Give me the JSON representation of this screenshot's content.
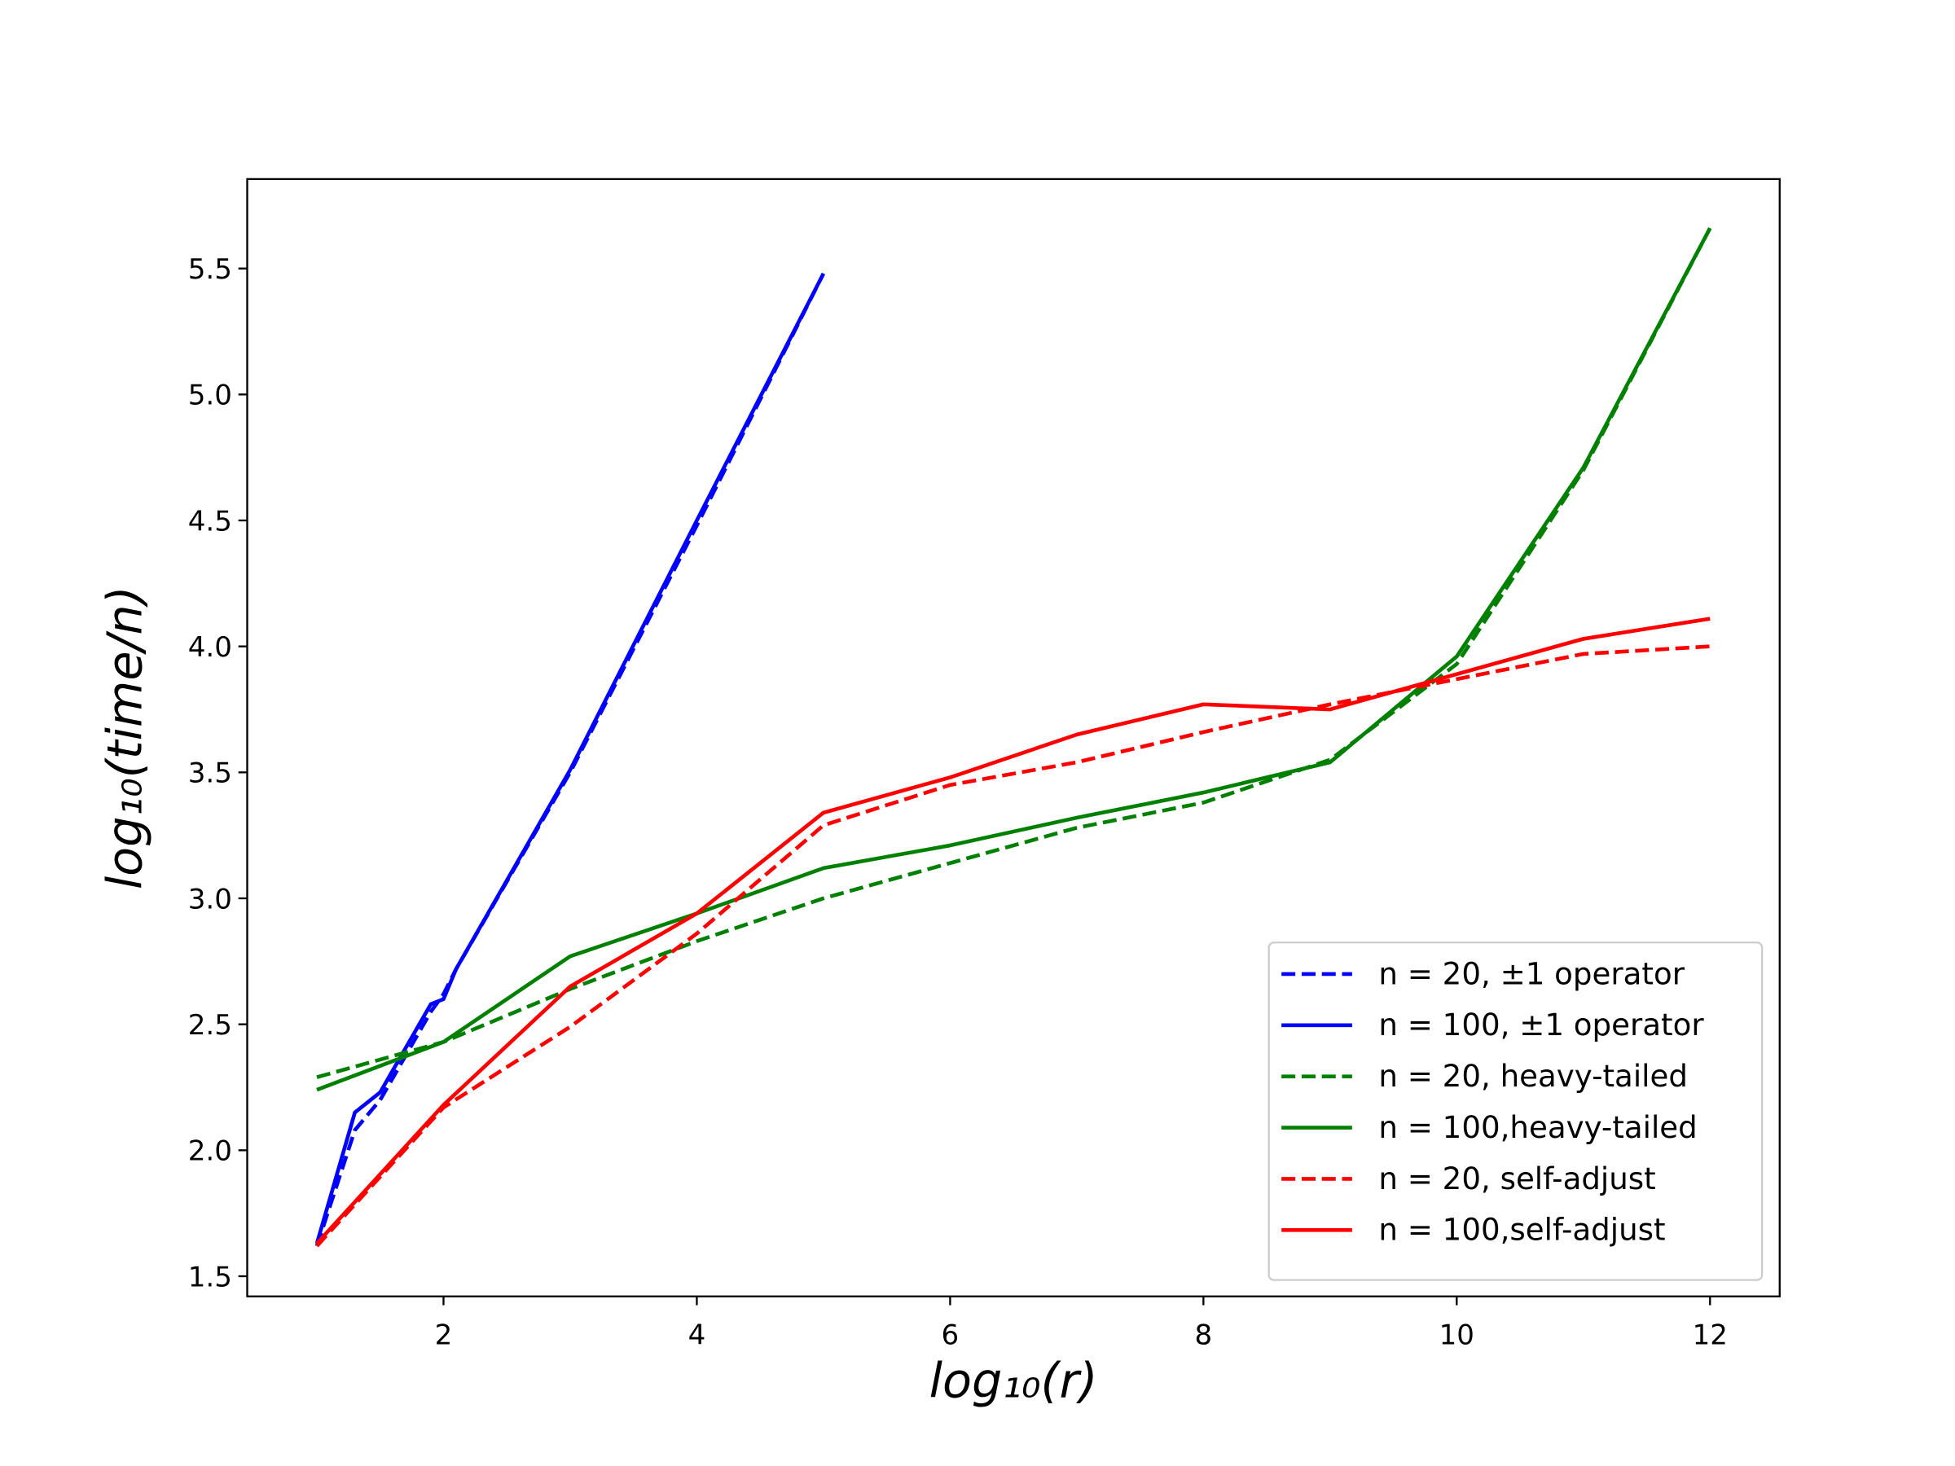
{
  "chart_data": {
    "type": "line",
    "x_label": "log₁₀(r)",
    "y_label": "log₁₀(time/n)",
    "xlim": [
      0.45,
      12.55
    ],
    "ylim": [
      1.42,
      5.855
    ],
    "xticks": [
      2,
      4,
      6,
      8,
      10,
      12
    ],
    "yticks": [
      1.5,
      {
        "value": 2,
        "label": "2.0"
      },
      2.5,
      {
        "value": 3,
        "label": "3.0"
      },
      3.5,
      {
        "value": 4,
        "label": "4.0"
      },
      4.5,
      {
        "value": 5,
        "label": "5.0"
      },
      5.5
    ],
    "grid": false,
    "legend": "lower right",
    "series": [
      {
        "name": "n = 20, ±1 operator",
        "color": "#0000ff",
        "linestyle": "dashed",
        "x": [
          1,
          1.3,
          1.5,
          1.9,
          2,
          2.1,
          3,
          4,
          5
        ],
        "values": [
          1.62,
          2.08,
          2.2,
          2.55,
          2.62,
          2.72,
          3.5,
          4.48,
          5.48
        ]
      },
      {
        "name": "n = 100, ±1 operator",
        "color": "#0000ff",
        "linestyle": "solid",
        "x": [
          1,
          1.3,
          1.5,
          1.9,
          2,
          2.1,
          3,
          4,
          5
        ],
        "values": [
          1.63,
          2.15,
          2.23,
          2.58,
          2.6,
          2.72,
          3.51,
          4.5,
          5.48
        ]
      },
      {
        "name": "n = 20, heavy-tailed",
        "color": "#008000",
        "linestyle": "dashed",
        "x": [
          1,
          2,
          3,
          4,
          5,
          6,
          7,
          8,
          9,
          10,
          11,
          12
        ],
        "values": [
          2.29,
          2.43,
          2.64,
          2.83,
          3.0,
          3.14,
          3.28,
          3.38,
          3.55,
          3.93,
          4.7,
          5.66
        ]
      },
      {
        "name": "n = 100,heavy-tailed",
        "color": "#008000",
        "linestyle": "solid",
        "x": [
          1,
          2,
          3,
          4,
          5,
          6,
          7,
          8,
          9,
          10,
          11,
          12
        ],
        "values": [
          2.24,
          2.43,
          2.77,
          2.94,
          3.12,
          3.21,
          3.32,
          3.42,
          3.54,
          3.96,
          4.71,
          5.66
        ]
      },
      {
        "name": "n = 20, self-adjust",
        "color": "#ff0000",
        "linestyle": "dashed",
        "x": [
          1,
          2,
          3,
          4,
          5,
          6,
          7,
          8,
          9,
          10,
          11,
          12
        ],
        "values": [
          1.62,
          2.17,
          2.49,
          2.86,
          3.29,
          3.45,
          3.54,
          3.66,
          3.77,
          3.87,
          3.97,
          4.0
        ]
      },
      {
        "name": "n = 100,self-adjust",
        "color": "#ff0000",
        "linestyle": "solid",
        "x": [
          1,
          2,
          3,
          4,
          5,
          6,
          7,
          8,
          9,
          10,
          11,
          12
        ],
        "values": [
          1.63,
          2.18,
          2.65,
          2.94,
          3.34,
          3.48,
          3.65,
          3.77,
          3.75,
          3.89,
          4.03,
          4.11
        ]
      }
    ]
  }
}
